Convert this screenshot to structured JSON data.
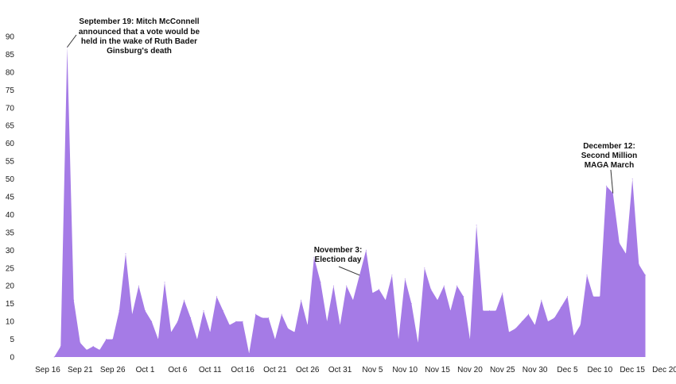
{
  "chart_data": {
    "type": "area",
    "title": "",
    "xlabel": "",
    "ylabel": "",
    "ylim": [
      0,
      90
    ],
    "xlim": [
      "2020-09-16",
      "2020-12-20"
    ],
    "yticks": [
      0,
      5,
      10,
      15,
      20,
      25,
      30,
      35,
      40,
      45,
      50,
      55,
      60,
      65,
      70,
      75,
      80,
      85,
      90
    ],
    "xticks": [
      "2020-09-16",
      "2020-09-21",
      "2020-09-26",
      "2020-10-01",
      "2020-10-06",
      "2020-10-11",
      "2020-10-16",
      "2020-10-21",
      "2020-10-26",
      "2020-10-31",
      "2020-11-05",
      "2020-11-10",
      "2020-11-15",
      "2020-11-20",
      "2020-11-25",
      "2020-11-30",
      "2020-12-05",
      "2020-12-10",
      "2020-12-15",
      "2020-12-20"
    ],
    "xtick_labels": [
      "Sep 16",
      "Sep 21",
      "Sep 26",
      "Oct 1",
      "Oct 6",
      "Oct 11",
      "Oct 16",
      "Oct 21",
      "Oct 26",
      "Oct 31",
      "Nov 5",
      "Nov 10",
      "Nov 15",
      "Nov 20",
      "Nov 25",
      "Nov 30",
      "Dec 5",
      "Dec 10",
      "Dec 15",
      "Dec 20"
    ],
    "grid": false,
    "color": "#a57be6",
    "x": [
      "2020-09-17",
      "2020-09-18",
      "2020-09-19",
      "2020-09-20",
      "2020-09-21",
      "2020-09-22",
      "2020-09-23",
      "2020-09-24",
      "2020-09-25",
      "2020-09-26",
      "2020-09-27",
      "2020-09-28",
      "2020-09-29",
      "2020-09-30",
      "2020-10-01",
      "2020-10-02",
      "2020-10-03",
      "2020-10-04",
      "2020-10-05",
      "2020-10-06",
      "2020-10-07",
      "2020-10-08",
      "2020-10-09",
      "2020-10-10",
      "2020-10-11",
      "2020-10-12",
      "2020-10-13",
      "2020-10-14",
      "2020-10-15",
      "2020-10-16",
      "2020-10-17",
      "2020-10-18",
      "2020-10-19",
      "2020-10-20",
      "2020-10-21",
      "2020-10-22",
      "2020-10-23",
      "2020-10-24",
      "2020-10-25",
      "2020-10-26",
      "2020-10-27",
      "2020-10-28",
      "2020-10-29",
      "2020-10-30",
      "2020-10-31",
      "2020-11-01",
      "2020-11-02",
      "2020-11-03",
      "2020-11-04",
      "2020-11-05",
      "2020-11-06",
      "2020-11-07",
      "2020-11-08",
      "2020-11-09",
      "2020-11-10",
      "2020-11-11",
      "2020-11-12",
      "2020-11-13",
      "2020-11-14",
      "2020-11-15",
      "2020-11-16",
      "2020-11-17",
      "2020-11-18",
      "2020-11-19",
      "2020-11-20",
      "2020-11-21",
      "2020-11-22",
      "2020-11-23",
      "2020-11-24",
      "2020-11-25",
      "2020-11-26",
      "2020-11-27",
      "2020-11-28",
      "2020-11-29",
      "2020-11-30",
      "2020-12-01",
      "2020-12-02",
      "2020-12-03",
      "2020-12-04",
      "2020-12-05",
      "2020-12-06",
      "2020-12-07",
      "2020-12-08",
      "2020-12-09",
      "2020-12-10",
      "2020-12-11",
      "2020-12-12",
      "2020-12-13",
      "2020-12-14",
      "2020-12-15",
      "2020-12-16",
      "2020-12-17"
    ],
    "values": [
      0,
      3,
      87,
      16,
      4,
      2,
      3,
      2,
      5,
      5,
      13,
      29,
      12,
      20,
      13,
      10,
      5,
      21,
      7,
      10,
      16,
      11,
      5,
      13,
      7,
      17,
      13,
      9,
      10,
      10,
      1,
      12,
      11,
      11,
      5,
      12,
      8,
      7,
      16,
      9,
      28,
      21,
      10,
      20,
      9,
      20,
      16,
      23,
      30,
      18,
      19,
      16,
      23,
      5,
      22,
      15,
      4,
      25,
      19,
      16,
      20,
      13,
      20,
      17,
      5,
      37,
      13,
      13,
      13,
      18,
      7,
      8,
      10,
      12,
      9,
      16,
      10,
      11,
      14,
      17,
      6,
      9,
      23,
      17,
      17,
      48,
      46,
      32,
      29,
      50,
      26,
      23
    ],
    "annotations": [
      {
        "x": "2020-09-19",
        "y": 87,
        "lines": [
          "September 19: Mitch McConnell",
          "announced that a vote would be",
          "held in the wake of Ruth Bader",
          "Ginsburg's death"
        ]
      },
      {
        "x": "2020-11-03",
        "y": 23,
        "lines": [
          "November 3:",
          "Election day"
        ]
      },
      {
        "x": "2020-12-12",
        "y": 46,
        "lines": [
          "December 12:",
          "Second Million",
          "MAGA March"
        ]
      }
    ]
  }
}
